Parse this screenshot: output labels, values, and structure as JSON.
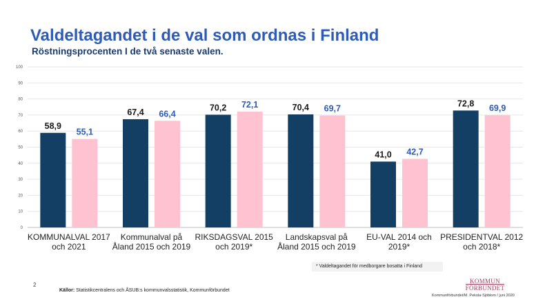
{
  "title": "Valdeltagandet i de val som ordnas i Finland",
  "subtitle": "Röstningsprocenten I de två senaste valen.",
  "footnote": "* Valdeltagandet för medborgare bosatta i Finland",
  "page_number": "2",
  "sources_label": "Källor:",
  "sources_text": " Statistikcentralens och ÅSUB:s kommunvalsstatistik, Kommunförbundet",
  "logo_line1": "KOMMUN",
  "logo_line2": "FÖRBUNDET",
  "credit": "Kommunförbundet/M. Pekola-Sjöblom  / juni 2020",
  "colors": {
    "series1": "#123f63",
    "series2": "#ffc2d1",
    "label1": "#1a1a1a",
    "label2": "#2d5bb5"
  },
  "chart_data": {
    "type": "bar",
    "categories": [
      [
        "KOMMUNALVAL 2017",
        "och 2021"
      ],
      [
        "Kommunalval på",
        "Åland 2015 och 2019"
      ],
      [
        "RIKSDAGSVAL 2015",
        "och 2019*"
      ],
      [
        "Landskapsval på",
        "Åland 2015 och 2019"
      ],
      [
        "EU-VAL 2014 och",
        "2019*"
      ],
      [
        "PRESIDENTVAL 2012",
        "och 2018*"
      ]
    ],
    "series": [
      {
        "values": [
          58.9,
          67.4,
          70.2,
          70.4,
          41.0,
          72.8
        ],
        "labels": [
          "58,9",
          "67,4",
          "70,2",
          "70,4",
          "41,0",
          "72,8"
        ]
      },
      {
        "values": [
          55.1,
          66.4,
          72.1,
          69.7,
          42.7,
          69.9
        ],
        "labels": [
          "55,1",
          "66,4",
          "72,1",
          "69,7",
          "42,7",
          "69,9"
        ]
      }
    ],
    "yticks": [
      0,
      10,
      20,
      30,
      40,
      50,
      60,
      70,
      80,
      90,
      100
    ],
    "ylim": [
      0,
      100
    ],
    "grid": true,
    "legend": "none"
  }
}
